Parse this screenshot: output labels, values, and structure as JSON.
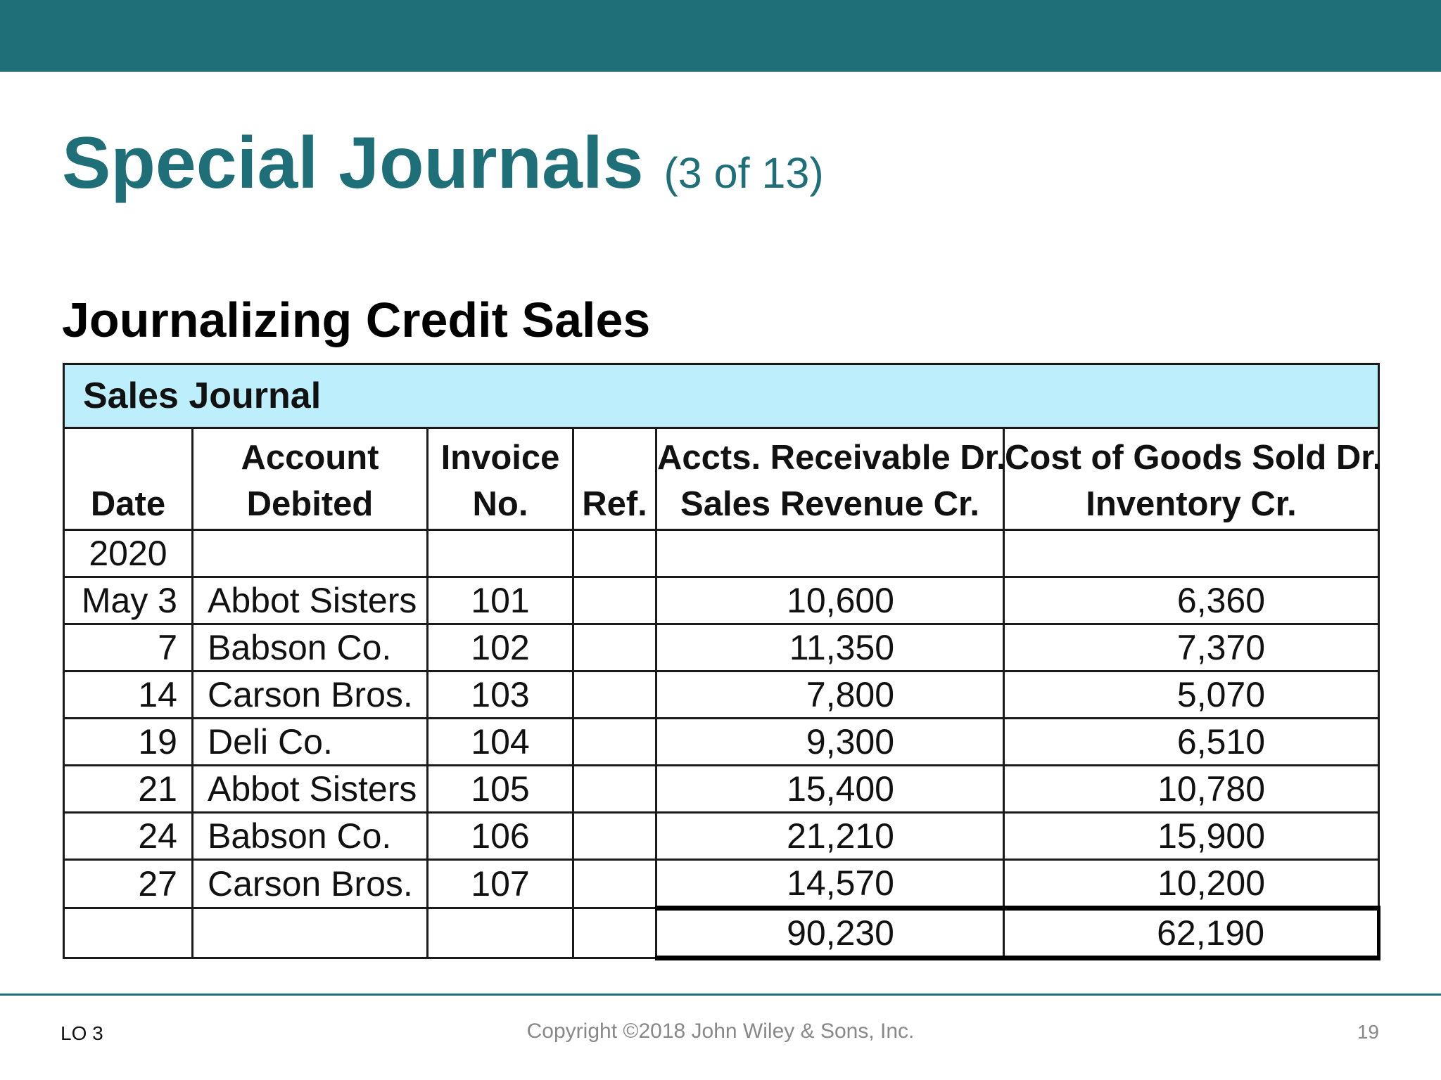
{
  "slide": {
    "title": "Special Journals",
    "title_count": "(3 of 13)",
    "subtitle": "Journalizing Credit Sales"
  },
  "journal": {
    "caption": "Sales Journal",
    "headers": {
      "date": "Date",
      "account_line1": "Account",
      "account_line2": "Debited",
      "invoice_line1": "Invoice",
      "invoice_line2": "No.",
      "ref": "Ref.",
      "ar_line1": "Accts. Receivable Dr.",
      "ar_line2": "Sales Revenue Cr.",
      "cogs_line1": "Cost of Goods Sold Dr.",
      "cogs_line2": "Inventory Cr."
    },
    "year": "2020",
    "rows": [
      {
        "date": "May 3",
        "account": "Abbot Sisters",
        "invoice": "101",
        "ref": "",
        "ar": "10,600",
        "cogs": "6,360"
      },
      {
        "date": "7",
        "account": "Babson Co.",
        "invoice": "102",
        "ref": "",
        "ar": "11,350",
        "cogs": "7,370"
      },
      {
        "date": "14",
        "account": "Carson Bros.",
        "invoice": "103",
        "ref": "",
        "ar": "7,800",
        "cogs": "5,070"
      },
      {
        "date": "19",
        "account": "Deli Co.",
        "invoice": "104",
        "ref": "",
        "ar": "9,300",
        "cogs": "6,510"
      },
      {
        "date": "21",
        "account": "Abbot Sisters",
        "invoice": "105",
        "ref": "",
        "ar": "15,400",
        "cogs": "10,780"
      },
      {
        "date": "24",
        "account": "Babson Co.",
        "invoice": "106",
        "ref": "",
        "ar": "21,210",
        "cogs": "15,900"
      },
      {
        "date": "27",
        "account": "Carson Bros.",
        "invoice": "107",
        "ref": "",
        "ar": "14,570",
        "cogs": "10,200"
      }
    ],
    "totals": {
      "ar": "90,230",
      "cogs": "62,190"
    }
  },
  "footer": {
    "lo": "LO 3",
    "copyright": "Copyright ©2018 John Wiley & Sons, Inc.",
    "page": "19"
  },
  "colors": {
    "brand_teal": "#1e6f78",
    "caption_bg": "#bdeefc",
    "footer_text": "#888888"
  }
}
